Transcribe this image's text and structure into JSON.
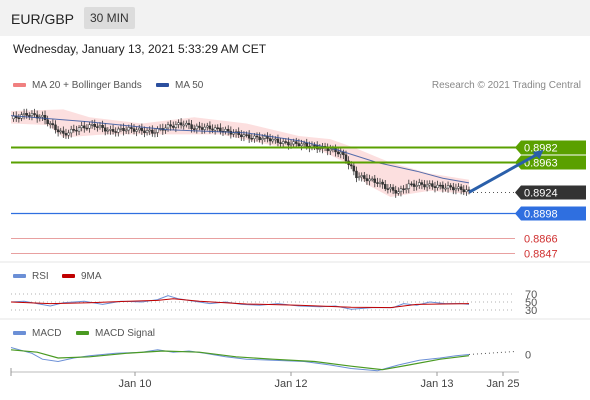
{
  "header": {
    "pair": "EUR/GBP",
    "timeframe": "30 MIN"
  },
  "datetime": "Wednesday, January 13, 2021 5:33:29 AM CET",
  "credit": "Research © 2021 Trading Central",
  "colors": {
    "ma20": "#f08080",
    "ma50": "#2b4f9e",
    "resistance": "#5aa000",
    "support": "#2f6fe0",
    "extra_support": "#e8a0a0",
    "price": "#333333",
    "rsi": "#6b8fd6",
    "rsi_ma": "#c00000",
    "macd": "#6b8fd6",
    "macd_signal": "#4a9a22",
    "arrow": "#2a5faa",
    "candle_up": "#ffffff",
    "candle_down": "#333333"
  },
  "chart_data": [
    {
      "type": "candlestick",
      "legend": [
        {
          "name": "MA 20 + Bollinger Bands",
          "color": "#f08080"
        },
        {
          "name": "MA 50",
          "color": "#2b4f9e"
        }
      ],
      "x_ticks": [
        "Jan 10",
        "Jan 12",
        "Jan 13",
        "Jan 25"
      ],
      "ylim": [
        0.884,
        0.9042
      ],
      "close_path": [
        [
          0,
          0.9018
        ],
        [
          6,
          0.9024
        ],
        [
          12,
          0.902
        ],
        [
          16,
          0.9008
        ],
        [
          20,
          0.8998
        ],
        [
          26,
          0.9006
        ],
        [
          32,
          0.901
        ],
        [
          38,
          0.9002
        ],
        [
          44,
          0.9005
        ],
        [
          48,
          0.9004
        ],
        [
          54,
          0.9001
        ],
        [
          60,
          0.9008
        ],
        [
          66,
          0.9012
        ],
        [
          70,
          0.9006
        ],
        [
          74,
          0.9007
        ],
        [
          80,
          0.9004
        ],
        [
          86,
          0.8999
        ],
        [
          92,
          0.8994
        ],
        [
          98,
          0.8993
        ],
        [
          104,
          0.8987
        ],
        [
          110,
          0.8986
        ],
        [
          116,
          0.8982
        ],
        [
          122,
          0.8979
        ],
        [
          126,
          0.8974
        ],
        [
          128,
          0.8966
        ],
        [
          132,
          0.8945
        ],
        [
          136,
          0.8941
        ],
        [
          140,
          0.8937
        ],
        [
          144,
          0.8929
        ],
        [
          148,
          0.8924
        ],
        [
          152,
          0.8933
        ],
        [
          156,
          0.8934
        ],
        [
          162,
          0.8932
        ],
        [
          168,
          0.893
        ],
        [
          172,
          0.8928
        ],
        [
          175,
          0.8925
        ]
      ],
      "ma50": [
        [
          0,
          0.9022
        ],
        [
          30,
          0.9014
        ],
        [
          60,
          0.9004
        ],
        [
          90,
          0.9
        ],
        [
          110,
          0.899
        ],
        [
          125,
          0.8978
        ],
        [
          140,
          0.8962
        ],
        [
          155,
          0.8951
        ],
        [
          165,
          0.8942
        ],
        [
          175,
          0.8936
        ]
      ],
      "bollinger": {
        "upper": [
          [
            0,
            0.9028
          ],
          [
            20,
            0.903
          ],
          [
            30,
            0.902
          ],
          [
            50,
            0.9012
          ],
          [
            70,
            0.902
          ],
          [
            90,
            0.9012
          ],
          [
            110,
            0.8996
          ],
          [
            122,
            0.8992
          ],
          [
            132,
            0.898
          ],
          [
            145,
            0.8962
          ],
          [
            160,
            0.8948
          ],
          [
            175,
            0.894
          ]
        ],
        "lower": [
          [
            0,
            0.9012
          ],
          [
            14,
            0.901
          ],
          [
            20,
            0.8994
          ],
          [
            36,
            0.8998
          ],
          [
            60,
            0.8998
          ],
          [
            80,
            0.8998
          ],
          [
            100,
            0.8984
          ],
          [
            118,
            0.8978
          ],
          [
            128,
            0.8962
          ],
          [
            136,
            0.8934
          ],
          [
            145,
            0.8918
          ],
          [
            160,
            0.8926
          ],
          [
            175,
            0.8922
          ]
        ]
      },
      "levels": [
        {
          "label": "0.8982",
          "value": 0.8982,
          "type": "resistance"
        },
        {
          "label": "0.8963",
          "value": 0.8963,
          "type": "resistance"
        },
        {
          "label": "0.8924",
          "value": 0.8924,
          "type": "price"
        },
        {
          "label": "0.8898",
          "value": 0.8898,
          "type": "support"
        },
        {
          "label": "0.8866",
          "value": 0.8866,
          "type": "extra_support"
        },
        {
          "label": "0.8847",
          "value": 0.8847,
          "type": "extra_support"
        }
      ],
      "projection": {
        "from": [
          175,
          0.8924
        ],
        "to": [
          192,
          0.8978
        ]
      }
    },
    {
      "type": "line",
      "legend": [
        {
          "name": "RSI",
          "color": "#6b8fd6"
        },
        {
          "name": "9MA",
          "color": "#c00000"
        }
      ],
      "y_ticks": [
        "70",
        "50",
        "30"
      ],
      "ylim": [
        20,
        80
      ],
      "rsi": [
        [
          0,
          50
        ],
        [
          5,
          52
        ],
        [
          10,
          46
        ],
        [
          15,
          40
        ],
        [
          20,
          48
        ],
        [
          28,
          52
        ],
        [
          35,
          44
        ],
        [
          42,
          52
        ],
        [
          50,
          50
        ],
        [
          56,
          56
        ],
        [
          60,
          66
        ],
        [
          64,
          58
        ],
        [
          70,
          52
        ],
        [
          76,
          46
        ],
        [
          82,
          50
        ],
        [
          88,
          44
        ],
        [
          95,
          42
        ],
        [
          102,
          46
        ],
        [
          110,
          40
        ],
        [
          118,
          38
        ],
        [
          124,
          40
        ],
        [
          130,
          32
        ],
        [
          138,
          36
        ],
        [
          146,
          36
        ],
        [
          150,
          46
        ],
        [
          155,
          42
        ],
        [
          160,
          50
        ],
        [
          166,
          46
        ],
        [
          172,
          46
        ],
        [
          175,
          44
        ]
      ],
      "rsi_ma": [
        [
          0,
          50
        ],
        [
          15,
          46
        ],
        [
          30,
          48
        ],
        [
          45,
          52
        ],
        [
          56,
          54
        ],
        [
          62,
          58
        ],
        [
          72,
          52
        ],
        [
          90,
          45
        ],
        [
          110,
          42
        ],
        [
          130,
          37
        ],
        [
          145,
          36
        ],
        [
          155,
          44
        ],
        [
          175,
          46
        ]
      ]
    },
    {
      "type": "line",
      "legend": [
        {
          "name": "MACD",
          "color": "#6b8fd6"
        },
        {
          "name": "MACD Signal",
          "color": "#4a9a22"
        }
      ],
      "y_ticks": [
        "0"
      ],
      "ylim": [
        -0.0015,
        0.0009
      ],
      "macd": [
        [
          0,
          0.0006
        ],
        [
          8,
          0.0001
        ],
        [
          12,
          -0.0004
        ],
        [
          18,
          -0.0006
        ],
        [
          24,
          -0.0003
        ],
        [
          30,
          -0.0001
        ],
        [
          40,
          0.0001
        ],
        [
          50,
          0.0002
        ],
        [
          56,
          0.0004
        ],
        [
          62,
          0.0002
        ],
        [
          68,
          0.0003
        ],
        [
          74,
          0.0001
        ],
        [
          82,
          -0.0002
        ],
        [
          90,
          -0.0004
        ],
        [
          100,
          -0.0005
        ],
        [
          112,
          -0.0006
        ],
        [
          122,
          -0.0009
        ],
        [
          130,
          -0.0012
        ],
        [
          140,
          -0.0014
        ],
        [
          148,
          -0.0009
        ],
        [
          156,
          -0.0005
        ],
        [
          164,
          -0.0003
        ],
        [
          170,
          -0.0001
        ],
        [
          175,
          0.0
        ]
      ],
      "signal": [
        [
          0,
          0.0004
        ],
        [
          10,
          0.0002
        ],
        [
          18,
          -0.0003
        ],
        [
          30,
          -0.0002
        ],
        [
          44,
          0.0001
        ],
        [
          58,
          0.0003
        ],
        [
          72,
          0.0002
        ],
        [
          86,
          -0.0002
        ],
        [
          100,
          -0.0004
        ],
        [
          116,
          -0.0006
        ],
        [
          130,
          -0.001
        ],
        [
          142,
          -0.0013
        ],
        [
          152,
          -0.0009
        ],
        [
          164,
          -0.0004
        ],
        [
          175,
          -0.0001
        ]
      ]
    }
  ]
}
